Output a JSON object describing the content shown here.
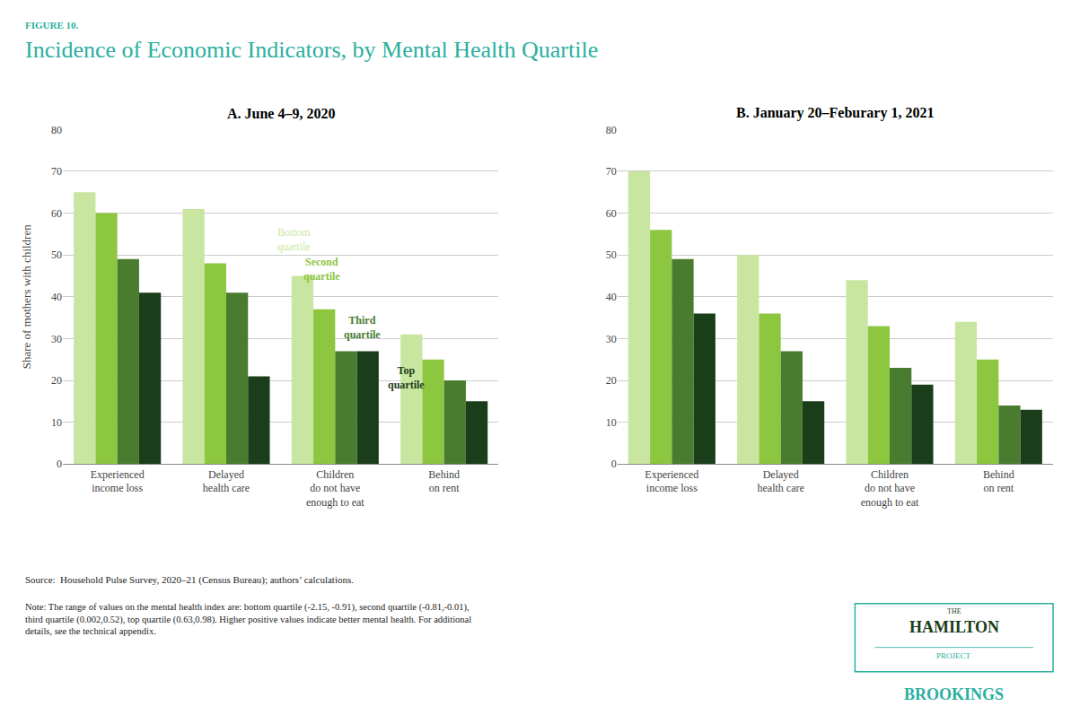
{
  "figure_label": "FIGURE 10.",
  "title": "Incidence of Economic Indicators, by Mental Health Quartile",
  "title_color": "#2aafa0",
  "source": "Source:  Household Pulse Survey, 2020–21 (Census Bureau); authors’ calculations.",
  "note": "Note: The range of values on the mental health index are: bottom quartile (-2.15, -0.91), second quartile (-0.81,-0.01),\nthird quartile (0.002,0.52), top quartile (0.63,0.98). Higher positive values indicate better mental health. For additional\ndetails, see the technical appendix.",
  "logo_text": [
    "THE",
    "HAMILTON",
    "PROJECT",
    "BROOKINGS"
  ],
  "chart_data": [
    {
      "type": "bar",
      "title": "A. June 4–9, 2020",
      "categories": [
        "Experienced\nincome loss",
        "Delayed\nhealth care",
        "Children\ndo not have\nenough to eat",
        "Behind\non rent"
      ],
      "series": [
        {
          "name": "Bottom\nquartile",
          "color": "#c8e6a0",
          "values": [
            65,
            61,
            45,
            31
          ]
        },
        {
          "name": "Second\nquartile",
          "color": "#8dc63f",
          "values": [
            60,
            48,
            37,
            25
          ]
        },
        {
          "name": "Third\nquartile",
          "color": "#4a7c2f",
          "values": [
            49,
            41,
            27,
            20
          ]
        },
        {
          "name": "Top\nquartile",
          "color": "#1a3d1a",
          "values": [
            41,
            21,
            27,
            15
          ]
        }
      ],
      "ylabel": "Share of mothers with children",
      "ylim": [
        0,
        80
      ],
      "yticks": [
        0,
        10,
        20,
        30,
        40,
        50,
        60,
        70,
        80
      ],
      "grid": true,
      "annotations": [
        {
          "text": "Bottom\nquartile",
          "x": 1.62,
          "y": 50,
          "color": "#c8e6a0"
        },
        {
          "text": "Second\nquartile",
          "x": 1.88,
          "y": 43,
          "color": "#8dc63f"
        },
        {
          "text": "Third\nquartile",
          "x": 2.25,
          "y": 29,
          "color": "#4a7c2f"
        },
        {
          "text": "Top\nquartile",
          "x": 2.65,
          "y": 17,
          "color": "#1a3d1a"
        }
      ]
    },
    {
      "type": "bar",
      "title": "B. January 20–Feburary 1, 2021",
      "categories": [
        "Experienced\nincome loss",
        "Delayed\nhealth care",
        "Children\ndo not have\nenough to eat",
        "Behind\non rent"
      ],
      "series": [
        {
          "name": "Bottom\nquartile",
          "color": "#c8e6a0",
          "values": [
            70,
            50,
            44,
            34
          ]
        },
        {
          "name": "Second\nquartile",
          "color": "#8dc63f",
          "values": [
            56,
            36,
            33,
            25
          ]
        },
        {
          "name": "Third\nquartile",
          "color": "#4a7c2f",
          "values": [
            49,
            27,
            23,
            14
          ]
        },
        {
          "name": "Top\nquartile",
          "color": "#1a3d1a",
          "values": [
            36,
            15,
            19,
            13
          ]
        }
      ],
      "ylim": [
        0,
        80
      ],
      "yticks": [
        0,
        10,
        20,
        30,
        40,
        50,
        60,
        70,
        80
      ],
      "grid": true
    }
  ]
}
